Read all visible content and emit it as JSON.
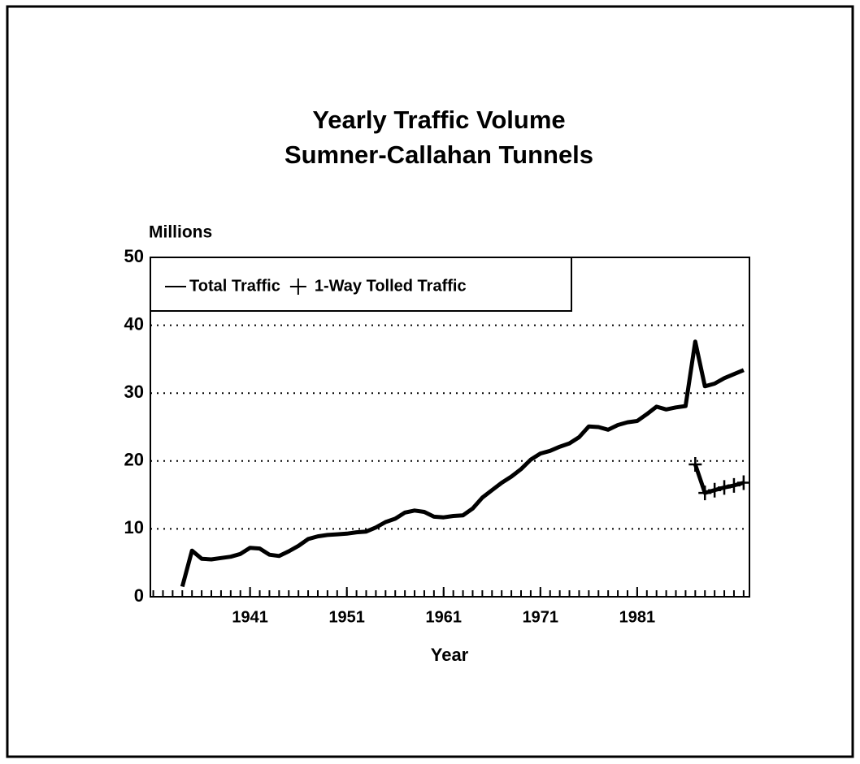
{
  "chart_data": {
    "type": "line",
    "title": "Yearly Traffic Volume",
    "subtitle": "Sumner-Callahan Tunnels",
    "y_label": "Millions",
    "x_label": "Year",
    "series": [
      {
        "name": "Total Traffic",
        "color": "#000000",
        "x": [
          1934,
          1935,
          1936,
          1937,
          1938,
          1939,
          1940,
          1941,
          1942,
          1943,
          1944,
          1945,
          1946,
          1947,
          1948,
          1949,
          1950,
          1951,
          1952,
          1953,
          1954,
          1955,
          1956,
          1957,
          1958,
          1959,
          1960,
          1961,
          1962,
          1963,
          1964,
          1965,
          1966,
          1967,
          1968,
          1969,
          1970,
          1971,
          1972,
          1973,
          1974,
          1975,
          1976,
          1977,
          1978,
          1979,
          1980,
          1981,
          1982,
          1983,
          1984,
          1985,
          1986,
          1987,
          1988,
          1989,
          1990,
          1991,
          1992
        ],
        "values": [
          1.5,
          6.8,
          5.6,
          5.5,
          5.7,
          5.9,
          6.3,
          7.2,
          7.1,
          6.2,
          6.0,
          6.7,
          7.5,
          8.5,
          8.9,
          9.1,
          9.2,
          9.3,
          9.5,
          9.6,
          10.2,
          11.0,
          11.5,
          12.4,
          12.7,
          12.5,
          11.8,
          11.7,
          11.9,
          12.0,
          13.0,
          14.6,
          15.7,
          16.8,
          17.7,
          18.8,
          20.2,
          21.1,
          21.5,
          22.1,
          22.6,
          23.5,
          25.1,
          25.0,
          24.6,
          25.3,
          25.7,
          25.9,
          26.9,
          28.0,
          27.6,
          27.9,
          28.1,
          37.6,
          31.0,
          31.4,
          32.2,
          32.8,
          33.4
        ]
      },
      {
        "name": "1-Way Tolled Traffic",
        "color": "#000000",
        "marker": "plus",
        "x": [
          1987,
          1988,
          1989,
          1990,
          1991,
          1992
        ],
        "values": [
          19.5,
          15.3,
          15.7,
          16.1,
          16.4,
          16.8
        ]
      }
    ],
    "xlim": [
      1930.7,
      1992.6
    ],
    "xticks": [
      1941,
      1951,
      1961,
      1971,
      1981
    ],
    "ylim": [
      0,
      50
    ],
    "yticks": [
      0,
      10,
      20,
      30,
      40,
      50
    ],
    "grid": true,
    "legend": "top-left"
  }
}
